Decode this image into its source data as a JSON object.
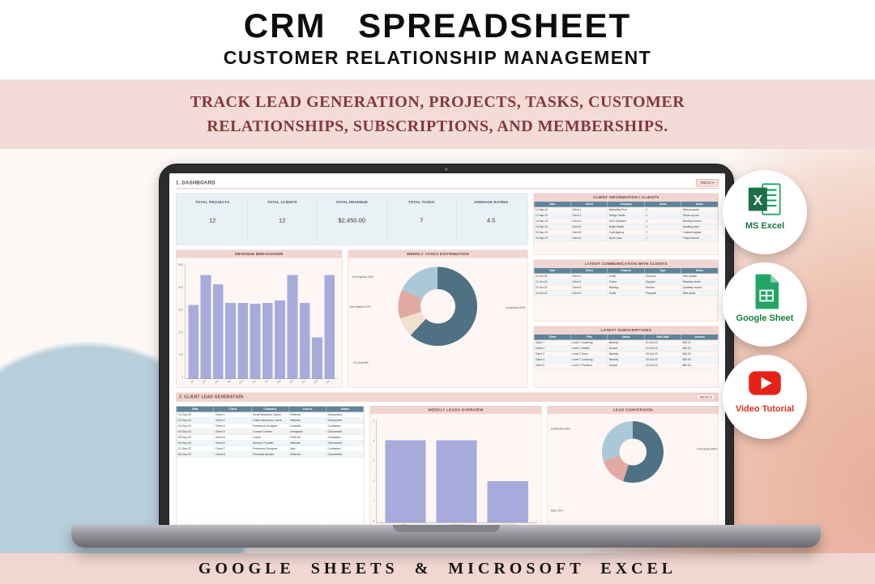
{
  "header": {
    "title": "CRM SPREADSHEET",
    "subtitle": "CUSTOMER RELATIONSHIP MANAGEMENT"
  },
  "banner": {
    "line1": "TRACK LEAD GENERATION, PROJECTS, TASKS, CUSTOMER",
    "line2": "RELATIONSHIPS, SUBSCRIPTIONS, AND MEMBERSHIPS."
  },
  "footer": {
    "text": "GOOGLE SHEETS & MICROSOFT EXCEL"
  },
  "badges": [
    {
      "label": "MS Excel",
      "color": "#217346",
      "icon": "excel-icon"
    },
    {
      "label": "Google Sheet",
      "color": "#188038",
      "icon": "google-sheets-icon"
    },
    {
      "label": "Video Tutorial",
      "color": "#d93025",
      "icon": "youtube-icon"
    }
  ],
  "dashboard": {
    "sheet_title": "1. DASHBOARD",
    "menu_button": "MENU ▾",
    "kpis": [
      {
        "label": "TOTAL PROJECTS",
        "value": "12"
      },
      {
        "label": "TOTAL CLIENTS",
        "value": "12"
      },
      {
        "label": "TOTAL REVENUE",
        "value": "$2,450.00"
      },
      {
        "label": "TOTAL TASKS",
        "value": "7"
      },
      {
        "label": "AVERAGE RATING",
        "value": "4.5"
      }
    ],
    "tables": {
      "client_info": {
        "title": "CLIENT INFORMATION / CLIENTS",
        "headers": [
          "Date",
          "Client",
          "Company",
          "Tasks",
          "Notes"
        ],
        "rows": [
          [
            "10-Sep-23",
            "Client 1",
            "Marketing Pros",
            "2",
            "Sent proposal"
          ],
          [
            "12-Sep-23",
            "Client 2",
            "Design Studio",
            "1",
            "Follow-up call"
          ],
          [
            "15-Sep-23",
            "Client 3",
            "Tech Solutions",
            "3",
            "Meeting booked"
          ],
          [
            "18-Sep-23",
            "Client 4",
            "Bright Media",
            "1",
            "Awaiting reply"
          ],
          [
            "20-Sep-23",
            "Client 5",
            "Craft Agency",
            "2",
            "Contract signed"
          ],
          [
            "22-Sep-23",
            "Client 6",
            "North Labs",
            "1",
            "Project kickoff"
          ]
        ]
      },
      "communication": {
        "title": "LATEST COMMUNICATION WITH CLIENTS",
        "headers": [
          "Date",
          "Client",
          "Channel",
          "Type",
          "Notes"
        ],
        "rows": [
          [
            "20-Oct-23",
            "Client 1",
            "Email",
            "Check-in",
            "Sent update"
          ],
          [
            "21-Oct-23",
            "Client 2",
            "Phone",
            "Support",
            "Resolved issue"
          ],
          [
            "22-Oct-23",
            "Client 3",
            "Meeting",
            "Review",
            "Quarterly review"
          ],
          [
            "23-Oct-23",
            "Client 4",
            "Email",
            "Proposal",
            "Sent quote"
          ]
        ]
      },
      "subscriptions": {
        "title": "LATEST SUBSCRIPTIONS",
        "headers": [
          "Client",
          "Plan",
          "Status",
          "Start Date",
          "Amount"
        ],
        "rows": [
          [
            "Client 1",
            "Level 1 Coaching",
            "Monthly",
            "01-Oct-23",
            "$25.00"
          ],
          [
            "Client 2",
            "Level 2 Sheets",
            "Annual",
            "02-Oct-23",
            "$99.00"
          ],
          [
            "Client 3",
            "Level 3 Excel",
            "Monthly",
            "05-Oct-23",
            "$49.00"
          ],
          [
            "Client 4",
            "Level 1 Coaching",
            "Monthly",
            "08-Oct-23",
            "$25.00"
          ],
          [
            "Client 5",
            "Level 2 Premium",
            "Annual",
            "10-Oct-23",
            "$89.00"
          ]
        ]
      },
      "leads": {
        "title": "2. CLIENT LEAD GENERATION",
        "menu_button": "MENU ▾",
        "headers": [
          "Date",
          "Client",
          "Company",
          "Source",
          "Status"
        ],
        "rows": [
          [
            "01-Sep-23",
            "Client 1",
            "Small Business Owner",
            "Referral",
            "Onboarded"
          ],
          [
            "02-Sep-23",
            "Client 2",
            "Online Business Owner",
            "Website",
            "Onboarded"
          ],
          [
            "03-Sep-23",
            "Client 3",
            "Freelance Designer",
            "LinkedIn",
            "Contacted"
          ],
          [
            "04-Sep-23",
            "Client 4",
            "Course Creator",
            "Instagram",
            "Onboarded"
          ],
          [
            "05-Sep-23",
            "Client 5",
            "Coach",
            "Referral",
            "Contacted"
          ],
          [
            "06-Sep-23",
            "Client 6",
            "Service Provider",
            "Website",
            "Onboarded"
          ],
          [
            "07-Sep-23",
            "Client 7",
            "Freelance Designer",
            "Ads",
            "Contacted"
          ],
          [
            "08-Sep-23",
            "Client 8",
            "Financial Advisor",
            "Referral",
            "Onboarded"
          ]
        ]
      }
    }
  },
  "chart_data": [
    {
      "type": "bar",
      "title": "REVENUE BREAKDOWN",
      "categories": [
        "Jan",
        "Feb",
        "Mar",
        "Apr",
        "May",
        "Jun",
        "Jul",
        "Aug",
        "Sep",
        "Oct",
        "Nov",
        "Dec"
      ],
      "values": [
        320,
        450,
        410,
        330,
        330,
        325,
        330,
        340,
        450,
        330,
        180,
        450
      ],
      "ylim": [
        0,
        500
      ],
      "yticks": [
        0,
        100,
        200,
        300,
        400,
        500
      ],
      "xlabel": "",
      "ylabel": "",
      "color": "#a6abdc"
    },
    {
      "type": "pie",
      "title": "WEEKLY TASKS DISTRIBUTION",
      "segments": [
        {
          "label": "Completed",
          "value": 62,
          "color": "#4e7183",
          "label_text": "Completed 62%"
        },
        {
          "label": "On Hold",
          "value": 8,
          "color": "#f1e0d0",
          "label_text": "On Hold 8%"
        },
        {
          "label": "Not Started",
          "value": 12,
          "color": "#e2a9a2",
          "label_text": "Not Started 12%"
        },
        {
          "label": "In Progress",
          "value": 18,
          "color": "#abc8d6",
          "label_text": "In Progress 18%"
        }
      ]
    },
    {
      "type": "bar",
      "title": "WEEKLY LEADS OVERVIEW",
      "categories": [
        "New",
        "Contacted",
        "Onboarded"
      ],
      "values": [
        4,
        4,
        2
      ],
      "ylim": [
        0,
        5
      ],
      "yticks": [
        0,
        1,
        2,
        3,
        4,
        5
      ],
      "xlabel": "",
      "ylabel": "",
      "color": "#a6abdc"
    },
    {
      "type": "pie",
      "title": "LEAD CONVERSION",
      "segments": [
        {
          "label": "Onboarded",
          "value": 55,
          "color": "#4e7183",
          "label_text": "Onboarded 55%"
        },
        {
          "label": "New",
          "value": 15,
          "color": "#e2a9a2",
          "label_text": "New 15%"
        },
        {
          "label": "Contacted",
          "value": 30,
          "color": "#abc8d6",
          "label_text": "Contacted 30%"
        }
      ]
    }
  ]
}
